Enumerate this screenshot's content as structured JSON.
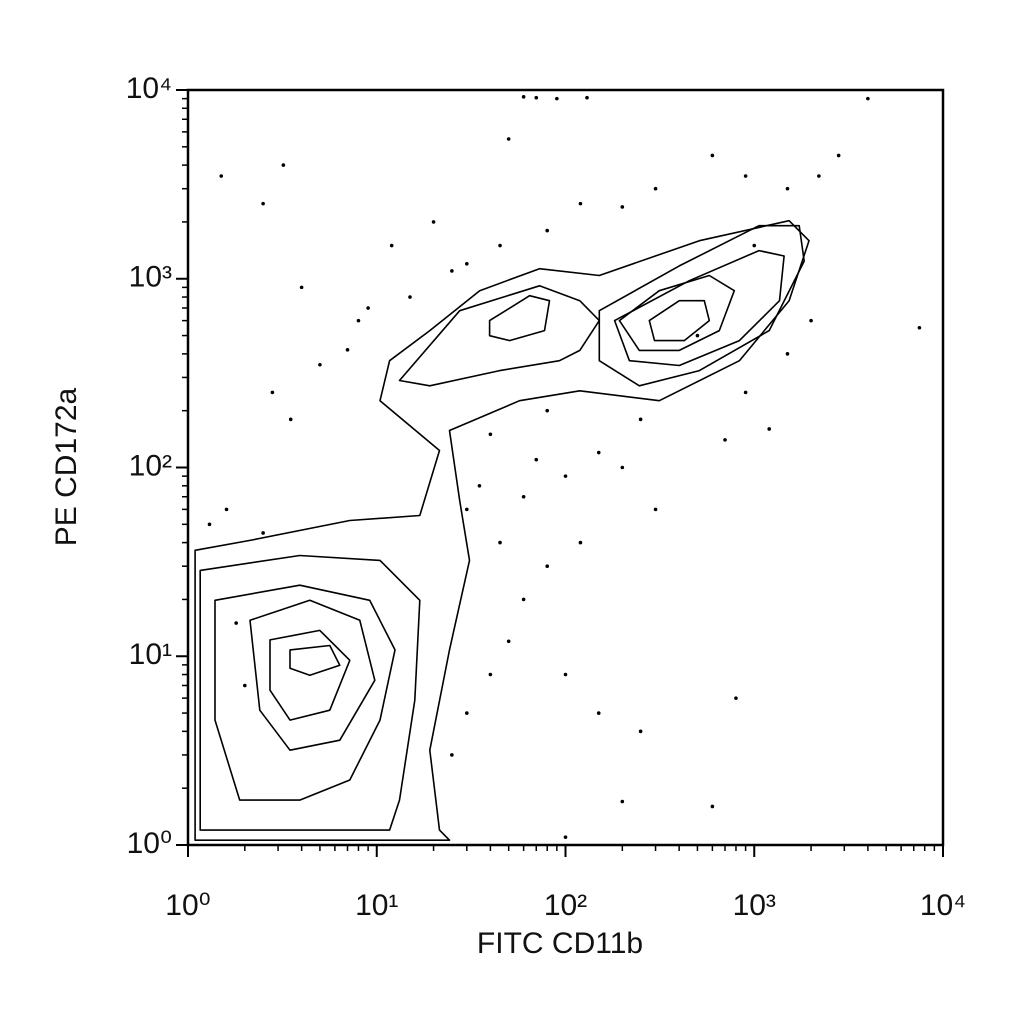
{
  "chart_data": {
    "type": "contour",
    "x_label": "FITC CD11b",
    "y_label": "PE CD172a",
    "xscale": "log",
    "yscale": "log",
    "xlim": [
      1,
      10000
    ],
    "ylim": [
      1,
      10000
    ],
    "xticks": [
      {
        "value": 1,
        "label": "10⁰"
      },
      {
        "value": 10,
        "label": "10¹"
      },
      {
        "value": 100,
        "label": "10²"
      },
      {
        "value": 1000,
        "label": "10³"
      },
      {
        "value": 10000,
        "label": "10⁴"
      }
    ],
    "yticks": [
      {
        "value": 1,
        "label": "10⁰"
      },
      {
        "value": 10,
        "label": "10¹"
      },
      {
        "value": 100,
        "label": "10²"
      },
      {
        "value": 1000,
        "label": "10³"
      },
      {
        "value": 10000,
        "label": "10⁴"
      }
    ],
    "minor_ticks": [
      2,
      3,
      4,
      5,
      6,
      7,
      8,
      9,
      20,
      30,
      40,
      50,
      60,
      70,
      80,
      90,
      200,
      300,
      400,
      500,
      600,
      700,
      800,
      900,
      2000,
      3000,
      4000,
      5000,
      6000,
      7000,
      8000,
      9000
    ],
    "color": "#000000",
    "contours": [
      {
        "x": [
          1.09,
          1.09,
          2.13,
          7.2,
          16.9,
          21.5,
          10.4,
          11.7,
          19.1,
          35.1,
          72.8,
          151,
          512,
          1530,
          1950,
          1530,
          834,
          314,
          119,
          57.1,
          24.3,
          27.5,
          31.0,
          24.3,
          19.1,
          21.5,
          24.3
        ],
        "y": [
          1.06,
          36.4,
          41.1,
          52.4,
          55.7,
          123,
          226,
          368,
          531,
          864,
          1130,
          1040,
          1590,
          2030,
          1590,
          765,
          368,
          226,
          255,
          226,
          157,
          66.8,
          32.2,
          10.8,
          3.18,
          1.2,
          1.06
        ]
      },
      {
        "x": [
          1.16,
          3.91,
          10.4,
          16.9,
          15.9,
          13.2,
          11.7,
          1.16
        ],
        "y": [
          28.5,
          34.2,
          32.2,
          19.8,
          5.85,
          1.73,
          1.2,
          1.2
        ]
      },
      {
        "x": [
          1.39,
          3.91,
          9.18,
          12.5,
          10.4,
          7.2,
          3.91,
          1.88,
          1.39
        ],
        "y": [
          19.8,
          23.8,
          19.8,
          10.8,
          4.59,
          2.21,
          1.73,
          1.73,
          4.59
        ]
      },
      {
        "x": [
          2.13,
          4.42,
          8.13,
          9.76,
          6.37,
          3.47,
          2.4
        ],
        "y": [
          15.5,
          19.8,
          15.5,
          7.46,
          3.59,
          3.18,
          5.18
        ]
      },
      {
        "x": [
          2.72,
          4.99,
          7.2,
          5.64,
          3.47,
          2.72
        ],
        "y": [
          12.2,
          13.7,
          9.52,
          5.18,
          4.59,
          6.61
        ]
      },
      {
        "x": [
          3.47,
          5.64,
          6.37,
          4.42,
          3.47
        ],
        "y": [
          10.8,
          11.4,
          8.96,
          7.93,
          8.64
        ]
      },
      {
        "x": [
          13.2,
          27.5,
          72.8,
          119,
          151,
          119,
          92.9,
          44.8,
          19.1
        ],
        "y": [
          289,
          677,
          918,
          765,
          600,
          417,
          368,
          326,
          271
        ]
      },
      {
        "x": [
          39.6,
          64.5,
          82.3,
          77.4,
          50.5,
          39.6
        ],
        "y": [
          600,
          813,
          765,
          531,
          470,
          499
        ]
      },
      {
        "x": [
          151,
          401,
          1060,
          1730,
          1840,
          1200,
          512,
          246,
          151
        ],
        "y": [
          677,
          1170,
          1910,
          1910,
          1240,
          531,
          326,
          271,
          368
        ]
      },
      {
        "x": [
          182,
          453,
          1060,
          1440,
          1360,
          834,
          401,
          218
        ],
        "y": [
          600,
          976,
          1410,
          1320,
          765,
          470,
          347,
          368
        ]
      },
      {
        "x": [
          193,
          314,
          578,
          784,
          653,
          401,
          246
        ],
        "y": [
          600,
          864,
          1040,
          864,
          531,
          417,
          417
        ]
      },
      {
        "x": [
          278,
          401,
          544,
          578,
          426,
          296
        ],
        "y": [
          600,
          765,
          765,
          600,
          470,
          470
        ]
      }
    ],
    "points": {
      "x": [
        1.5,
        3.2,
        2.5,
        4,
        8,
        12,
        20,
        50,
        60,
        70,
        90,
        130,
        4000,
        7500,
        2.8,
        3.5,
        5,
        7,
        9,
        15,
        25,
        30,
        45,
        80,
        120,
        200,
        300,
        600,
        900,
        1500,
        2200,
        2800,
        1200,
        900,
        700,
        1500,
        2000,
        250,
        150,
        100,
        60,
        40,
        80,
        200,
        300,
        120,
        80,
        60,
        50,
        40,
        30,
        25,
        100,
        150,
        800,
        600,
        200,
        100,
        250,
        1.6,
        1.8,
        2,
        1.3,
        2.5,
        30,
        35,
        45,
        70,
        500,
        1000
      ],
      "y": [
        3500,
        4000,
        2500,
        900,
        600,
        1500,
        2000,
        5500,
        9200,
        9100,
        9000,
        9100,
        9000,
        550,
        250,
        180,
        350,
        420,
        700,
        800,
        1100,
        1200,
        1500,
        1800,
        2500,
        2400,
        3000,
        4500,
        3500,
        3000,
        3500,
        4500,
        160,
        250,
        140,
        400,
        600,
        180,
        120,
        90,
        70,
        150,
        200,
        100,
        60,
        40,
        30,
        20,
        12,
        8,
        5,
        3,
        8,
        5,
        6,
        1.6,
        1.7,
        1.1,
        4,
        60,
        15,
        7,
        50,
        45,
        60,
        80,
        40,
        110,
        500,
        1500
      ]
    }
  }
}
